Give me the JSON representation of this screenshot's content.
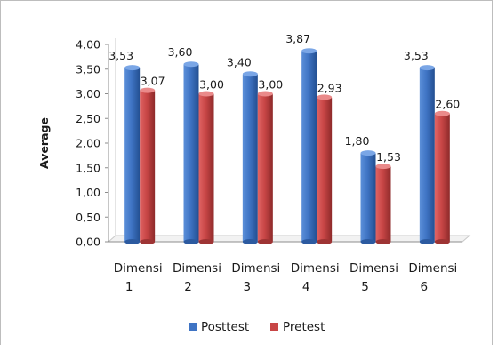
{
  "chart_data": {
    "type": "bar",
    "title": "",
    "xlabel": "",
    "ylabel": "Average",
    "ylim": [
      0,
      4
    ],
    "yticks": [
      "0,00",
      "0,50",
      "1,00",
      "1,50",
      "2,00",
      "2,50",
      "3,00",
      "3,50",
      "4,00"
    ],
    "ytick_values": [
      0,
      0.5,
      1,
      1.5,
      2,
      2.5,
      3,
      3.5,
      4
    ],
    "categories": [
      [
        "Dimensi",
        "1"
      ],
      [
        "Dimensi",
        "2"
      ],
      [
        "Dimensi",
        "3"
      ],
      [
        "Dimensi",
        "4"
      ],
      [
        "Dimensi",
        "5"
      ],
      [
        "Dimensi",
        "6"
      ]
    ],
    "series": [
      {
        "name": "Posttest",
        "color": "#3f74c4",
        "values": [
          3.53,
          3.6,
          3.4,
          3.87,
          1.8,
          3.53
        ],
        "labels": [
          "3,53",
          "3,60",
          "3,40",
          "3,87",
          "1,80",
          "3,53"
        ]
      },
      {
        "name": "Pretest",
        "color": "#c84646",
        "values": [
          3.07,
          3.0,
          3.0,
          2.93,
          1.53,
          2.6
        ],
        "labels": [
          "3,07",
          "3,00",
          "3,00",
          "2,93",
          "1,53",
          "2,60"
        ]
      }
    ],
    "grid": false,
    "legend_position": "bottom"
  }
}
